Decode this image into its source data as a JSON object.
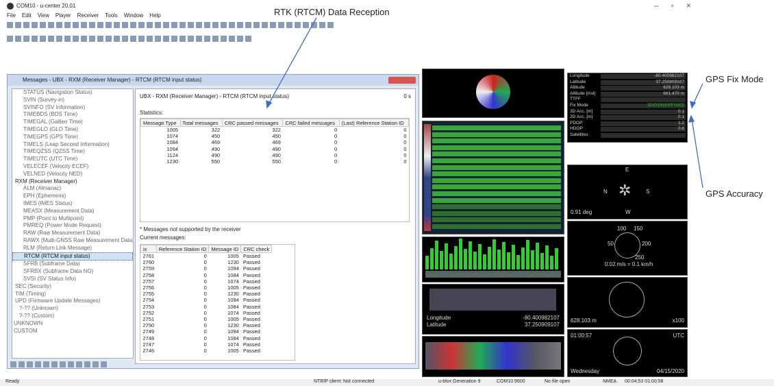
{
  "window": {
    "title": "COM10 - u-center 20.01",
    "menu": [
      "File",
      "Edit",
      "View",
      "Player",
      "Receiver",
      "Tools",
      "Window",
      "Help"
    ]
  },
  "annotations": {
    "rtk": "RTK (RTCM) Data Reception",
    "fix": "GPS Fix Mode",
    "accuracy": "GPS Accuracy"
  },
  "messages_window": {
    "title": "Messages - UBX - RXM (Receiver Manager) - RTCM (RTCM input status)",
    "tree": {
      "nav_items": [
        "STATUS (Navigation Status)",
        "SVIN (Survey-in)",
        "SVINFO (SV Information)",
        "TIMEBDS (BDS Time)",
        "TIMEGAL (Galileo Time)",
        "TIMEGLO (GLO Time)",
        "TIMEGPS (GPS Time)",
        "TIMELS (Leap Second Information)",
        "TIMEQZSS (QZSS Time)",
        "TIMEUTC (UTC Time)",
        "VELECEF (Velocity ECEF)",
        "VELNED (Velocity NED)"
      ],
      "rxm": {
        "label": "RXM (Receiver Manager)",
        "children": [
          "ALM (Almanac)",
          "EPH (Ephemeris)",
          "IMES (IMES Status)",
          "MEASX (Measurement Data)",
          "PMP (Point to Multipoint)",
          "PMREQ (Power Mode Request)",
          "RAW (Raw Measurement Data)",
          "RAWX (Multi-GNSS Raw Measurement Data)",
          "RLM (Return Link Message)",
          "RTCM (RTCM input status)",
          "SFRB (Subframe Data)",
          "SFRBX (Subframe Data NG)",
          "SVSI (SV Status Info)"
        ]
      },
      "groups": [
        "SEC (Security)",
        "TIM (Timing)",
        "UPD (Firmware Update Messages)"
      ],
      "sub_items": [
        "?-?? (Unknown)",
        "?-?? (Custom)"
      ],
      "root_items": [
        "UNKNOWN",
        "CUSTOM"
      ]
    },
    "panel_header": "UBX - RXM (Receiver Manager) - RTCM (RTCM input status)",
    "age": "0 s",
    "statistics_label": "Statistics:",
    "statistics": {
      "columns": [
        "Message Type",
        "Total messages",
        "CRC passed messages",
        "CRC failed messages",
        "(Last) Reference Station ID"
      ],
      "rows": [
        [
          1005,
          322,
          322,
          0,
          0
        ],
        [
          1074,
          450,
          450,
          0,
          0
        ],
        [
          1084,
          469,
          469,
          0,
          0
        ],
        [
          1094,
          490,
          490,
          0,
          0
        ],
        [
          1124,
          490,
          490,
          0,
          0
        ],
        [
          1230,
          550,
          550,
          0,
          0
        ]
      ]
    },
    "note": "* Messages not supported by the receiver",
    "current_label": "Current messages:",
    "current": {
      "columns": [
        "ix",
        "Reference Station ID",
        "Message ID",
        "CRC check"
      ],
      "rows": [
        [
          2761,
          0,
          1005,
          "Passed"
        ],
        [
          2760,
          0,
          1230,
          "Passed"
        ],
        [
          2759,
          0,
          1094,
          "Passed"
        ],
        [
          2758,
          0,
          1084,
          "Passed"
        ],
        [
          2757,
          0,
          1074,
          "Passed"
        ],
        [
          2756,
          0,
          1005,
          "Passed"
        ],
        [
          2755,
          0,
          1230,
          "Passed"
        ],
        [
          2754,
          0,
          1094,
          "Passed"
        ],
        [
          2753,
          0,
          1084,
          "Passed"
        ],
        [
          2752,
          0,
          1074,
          "Passed"
        ],
        [
          2751,
          0,
          1005,
          "Passed"
        ],
        [
          2750,
          0,
          1230,
          "Passed"
        ],
        [
          2749,
          0,
          1094,
          "Passed"
        ],
        [
          2748,
          0,
          1084,
          "Passed"
        ],
        [
          2747,
          0,
          1074,
          "Passed"
        ],
        [
          2746,
          0,
          1005,
          "Passed"
        ]
      ]
    }
  },
  "data_view": {
    "rows": [
      {
        "label": "Longitude",
        "value": "-80.400982107"
      },
      {
        "label": "Latitude",
        "value": "37.250909107"
      },
      {
        "label": "Altitude",
        "value": "628.103 m"
      },
      {
        "label": "Altitude [msl]",
        "value": "661.470 m"
      },
      {
        "label": "TTFF",
        "value": ""
      },
      {
        "label": "Fix Mode",
        "value": "3D/DGNSS/FIXED"
      },
      {
        "label": "3D Acc. [m]",
        "value": "0.1"
      },
      {
        "label": "2D Acc. [m]",
        "value": "0.1"
      },
      {
        "label": "PDOP",
        "value": "1.2"
      },
      {
        "label": "HDOP",
        "value": "0.6"
      },
      {
        "label": "Satellites",
        "value": ""
      }
    ]
  },
  "compass": {
    "heading": "0.91 deg",
    "n": "N",
    "e": "E",
    "s": "S",
    "w": "W"
  },
  "speed": {
    "scale_a": "100",
    "scale_b": "150",
    "scale_c": "50",
    "scale_d": "200",
    "scale_e": "250",
    "reading": "0.02 m/s = 0.1 km/h"
  },
  "altimeter": {
    "reading": "628.103 m",
    "unit": "x100"
  },
  "clock": {
    "time": "01:00:57",
    "zone": "UTC",
    "day": "Wednesday",
    "date": "04/15/2020"
  },
  "map": {
    "lon_label": "Longitude",
    "lon": "-80.400982107",
    "lat_label": "Latitude",
    "lat": "37.250909107"
  },
  "status_bar": {
    "ready": "Ready",
    "ntrip": "NTRIP client: Not connected",
    "generation": "u-blox Generation 9",
    "port": "COM10 9600",
    "file": "No file open",
    "protocol": "NMEA",
    "times": "00:04:53 01:00:58"
  }
}
